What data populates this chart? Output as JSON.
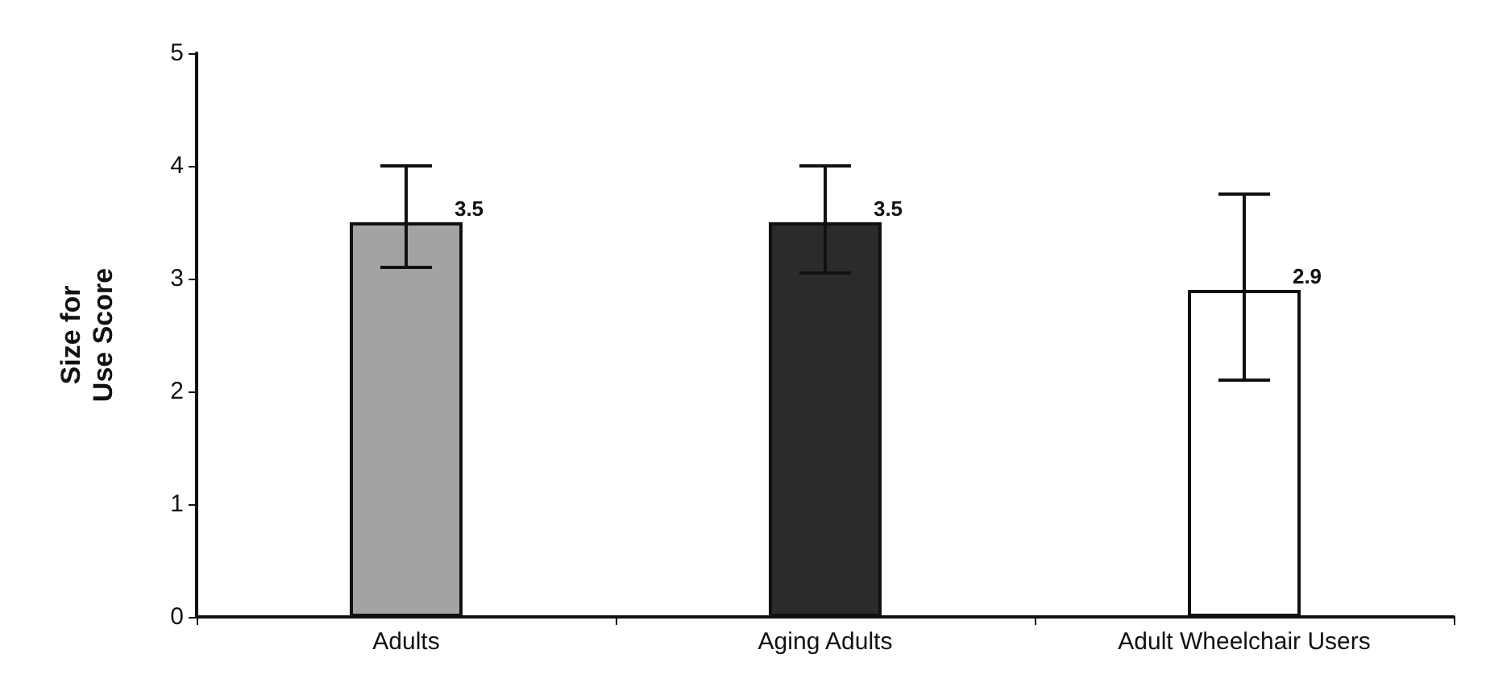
{
  "chart_data": {
    "type": "bar",
    "categories": [
      "Adults",
      "Aging Adults",
      "Adult Wheelchair Users"
    ],
    "values": [
      3.5,
      3.5,
      2.9
    ],
    "colors": [
      "#a3a3a3",
      "#2b2b2b",
      "#ffffff"
    ],
    "errors": [
      [
        3.1,
        4.0
      ],
      [
        3.05,
        4.0
      ],
      [
        2.1,
        3.75
      ]
    ],
    "value_labels": [
      "3.5",
      "3.5",
      "2.9"
    ],
    "ylabel": "Size for Use Score",
    "ylim": [
      0,
      5
    ],
    "yticks": [
      0,
      1,
      2,
      3,
      4,
      5
    ],
    "grid": false
  }
}
